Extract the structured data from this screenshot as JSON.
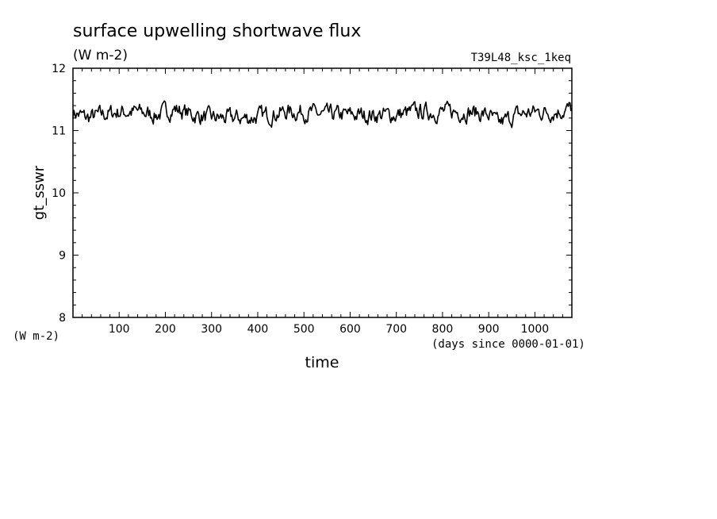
{
  "chart_data": {
    "type": "line",
    "title": "surface upwelling shortwave flux",
    "units": "(W m-2)",
    "run_label": "T39L48_ksc_1keq",
    "xlabel": "time",
    "xunits": "(days since 0000-01-01)",
    "ylabel": "gt_sswr",
    "yunits": "(W m-2)",
    "xlim": [
      0,
      1080
    ],
    "ylim": [
      8,
      12
    ],
    "xticks": [
      "100",
      "200",
      "300",
      "400",
      "500",
      "600",
      "700",
      "800",
      "900",
      "1000"
    ],
    "yticks": [
      "8",
      "9",
      "10",
      "11",
      "12"
    ],
    "grid": false,
    "line_color": "#000000",
    "series": [
      {
        "x": [
          0,
          30,
          60,
          100,
          140,
          180,
          220,
          260,
          300,
          340,
          380,
          420,
          460,
          500,
          540,
          580,
          620,
          660,
          700,
          740,
          780,
          820,
          860,
          900,
          920,
          960,
          1000,
          1040,
          1080
        ],
        "values": [
          11.3,
          11.2,
          11.25,
          11.3,
          11.3,
          11.25,
          11.35,
          11.25,
          11.2,
          11.2,
          11.2,
          11.25,
          11.3,
          11.3,
          11.25,
          11.25,
          11.25,
          11.25,
          11.25,
          11.3,
          11.3,
          11.3,
          11.3,
          11.25,
          11.1,
          11.25,
          11.3,
          11.3,
          11.35
        ]
      }
    ]
  }
}
